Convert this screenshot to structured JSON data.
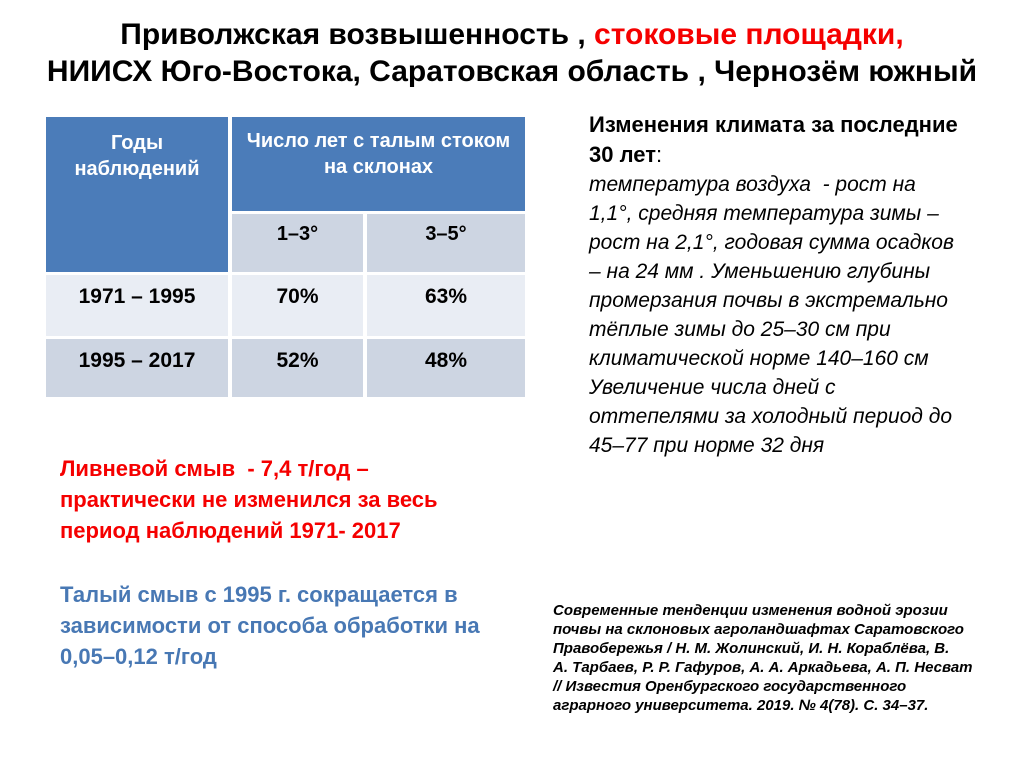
{
  "title": {
    "line1_black": "Приволжская возвышенность , ",
    "line1_red": "стоковые площадки,",
    "line2": "НИИСХ Юго-Востока, Саратовская область , Чернозём южный"
  },
  "table": {
    "col_header_years": "Годы\nнаблюдений",
    "col_header_runoff": "Число лет с талым стоком\nна склонах",
    "sub_headers": [
      "1–3°",
      "3–5°"
    ],
    "rows": [
      [
        "1971 – 1995",
        "70%",
        "63%"
      ],
      [
        "1995 – 2017",
        "52%",
        "48%"
      ]
    ]
  },
  "climate": {
    "heading": "Изменения климата за последние\n30 лет",
    "heading_colon": ":",
    "body": "температура воздуха  - рост на\n1,1°, средняя температура зимы –\nрост на 2,1°, годовая сумма осадков\n– на 24 мм . Уменьшению глубины\nпромерзания почвы в экстремально\nтёплые зимы до 25–30 см при\nклиматической норме 140–160 см\nУвеличение числа дней с\nоттепелями за холодный период до\n45–77 при норме 32 дня"
  },
  "notes": {
    "storm_runoff": "Ливневой смыв  - 7,4 т/год –\nпрактически не изменился за весь\nпериод наблюдений 1971- 2017",
    "melt_runoff": "Талый смыв с 1995 г. сокращается в\nзависимости от способа обработки на\n0,05–0,12 т/год"
  },
  "citation": "Современные тенденции изменения водной эрозии\nпочвы на склоновых агроландшафтах Саратовского\nПравобережья / Н. М. Жолинский, И. Н. Кораблёва, В.\nА. Тарбаев, Р. Р. Гафуров, А. А. Аркадьева, А. П. Несват\n// Известия Оренбургского государственного\nаграрного университета. 2019. № 4(78). С. 34–37.",
  "colors": {
    "header_blue": "#4B7CB9",
    "band_dark": "#CDD5E2",
    "band_light": "#E9EDF4",
    "accent_red": "#F50000",
    "accent_blue": "#4878B4"
  }
}
